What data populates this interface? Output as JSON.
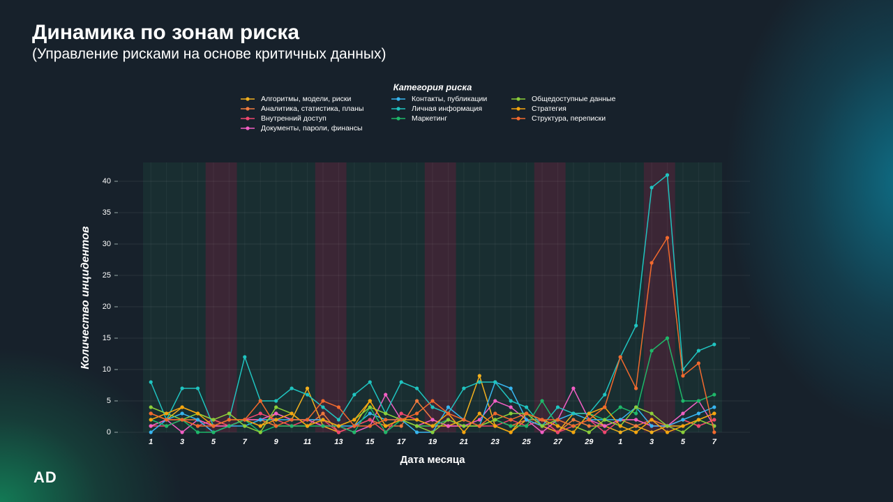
{
  "header": {
    "title": "Динамика по зонам риска",
    "subtitle": "(Управление рисками на основе критичных данных)"
  },
  "logo": "AD",
  "chart_data": {
    "type": "line",
    "x_label": "Дата месяца",
    "y_label": "Количество инцидентов",
    "legend_title": "Категория риска",
    "categories": [
      "1",
      null,
      "3",
      null,
      "5",
      null,
      "7",
      null,
      "9",
      null,
      "11",
      null,
      "13",
      null,
      "15",
      null,
      "17",
      null,
      "19",
      null,
      "21",
      null,
      "23",
      null,
      "25",
      null,
      "27",
      null,
      "29",
      null,
      "1",
      null,
      "3",
      null,
      "5",
      null,
      "7"
    ],
    "ylim": [
      0,
      43
    ],
    "yticks": [
      0,
      5,
      10,
      15,
      20,
      25,
      30,
      35,
      40
    ],
    "grid": true,
    "highlight_bands": [
      [
        4,
        5
      ],
      [
        11,
        12
      ],
      [
        18,
        19
      ],
      [
        25,
        26
      ],
      [
        32,
        33
      ]
    ],
    "series": [
      {
        "name": "Алгоритмы, модели, риски",
        "color": "#f2b01e",
        "values": [
          1,
          2,
          4,
          3,
          2,
          1,
          2,
          1,
          3,
          2,
          7,
          1,
          0,
          1,
          5,
          1,
          2,
          1,
          1,
          1,
          2,
          9,
          1,
          0,
          2,
          1,
          0,
          3,
          3,
          1,
          0,
          1,
          0,
          1,
          1,
          2,
          3
        ]
      },
      {
        "name": "Аналитика, статистика, планы",
        "color": "#f07b3f",
        "values": [
          3,
          2,
          2,
          2,
          1,
          1,
          2,
          2,
          1,
          1,
          1,
          3,
          0,
          1,
          2,
          1,
          1,
          5,
          2,
          1,
          1,
          1,
          2,
          1,
          2,
          2,
          0,
          2,
          1,
          1,
          2,
          1,
          2,
          1,
          2,
          1,
          2
        ]
      },
      {
        "name": "Внутренний доступ",
        "color": "#ef476f",
        "values": [
          1,
          1,
          2,
          1,
          2,
          1,
          2,
          3,
          2,
          1,
          2,
          2,
          0,
          1,
          2,
          0,
          3,
          2,
          1,
          2,
          1,
          1,
          1,
          2,
          1,
          2,
          0,
          1,
          2,
          0,
          2,
          2,
          1,
          1,
          2,
          1,
          2
        ]
      },
      {
        "name": "Документы, пароли, финансы",
        "color": "#f25fc4",
        "values": [
          1,
          2,
          0,
          2,
          1,
          1,
          2,
          2,
          3,
          2,
          2,
          1,
          1,
          0,
          1,
          6,
          2,
          1,
          2,
          1,
          1,
          2,
          5,
          4,
          2,
          0,
          2,
          7,
          2,
          1,
          2,
          2,
          1,
          1,
          3,
          5,
          1
        ]
      },
      {
        "name": "Контакты, публикации",
        "color": "#38b6f0",
        "values": [
          0,
          2,
          3,
          2,
          0,
          1,
          1,
          2,
          2,
          2,
          2,
          2,
          1,
          1,
          3,
          2,
          2,
          0,
          0,
          4,
          2,
          1,
          8,
          7,
          2,
          1,
          2,
          3,
          2,
          2,
          2,
          4,
          1,
          1,
          2,
          3,
          4
        ]
      },
      {
        "name": "Личная информация",
        "color": "#20c4c0",
        "values": [
          8,
          2,
          7,
          7,
          1,
          2,
          12,
          5,
          5,
          7,
          6,
          4,
          2,
          6,
          8,
          3,
          8,
          7,
          4,
          3,
          7,
          8,
          8,
          5,
          4,
          1,
          4,
          3,
          3,
          6,
          12,
          17,
          39,
          41,
          10,
          13,
          14
        ]
      },
      {
        "name": "Маркетинг",
        "color": "#1fb86a",
        "values": [
          2,
          1,
          2,
          0,
          0,
          1,
          2,
          0,
          1,
          1,
          1,
          1,
          1,
          0,
          4,
          0,
          2,
          1,
          1,
          2,
          1,
          1,
          2,
          1,
          1,
          5,
          1,
          0,
          3,
          2,
          4,
          3,
          13,
          15,
          5,
          5,
          6
        ]
      },
      {
        "name": "Общедоступные данные",
        "color": "#8ccf3a",
        "values": [
          4,
          3,
          2,
          3,
          2,
          3,
          1,
          0,
          4,
          3,
          1,
          2,
          1,
          2,
          4,
          3,
          2,
          1,
          0,
          2,
          1,
          1,
          2,
          3,
          3,
          1,
          2,
          1,
          0,
          2,
          1,
          4,
          3,
          1,
          0,
          2,
          1
        ]
      },
      {
        "name": "Стратегия",
        "color": "#f5a50f",
        "values": [
          2,
          3,
          4,
          3,
          1,
          2,
          2,
          1,
          2,
          3,
          1,
          2,
          1,
          2,
          5,
          1,
          2,
          2,
          1,
          3,
          0,
          3,
          1,
          0,
          3,
          2,
          1,
          0,
          3,
          4,
          1,
          0,
          2,
          0,
          1,
          2,
          3
        ]
      },
      {
        "name": "Структура, переписки",
        "color": "#f26a2e",
        "values": [
          3,
          2,
          2,
          1,
          1,
          2,
          2,
          5,
          1,
          2,
          2,
          5,
          4,
          1,
          1,
          2,
          2,
          3,
          5,
          3,
          2,
          1,
          3,
          2,
          3,
          2,
          2,
          1,
          2,
          4,
          12,
          7,
          27,
          31,
          9,
          11,
          0
        ]
      }
    ]
  }
}
